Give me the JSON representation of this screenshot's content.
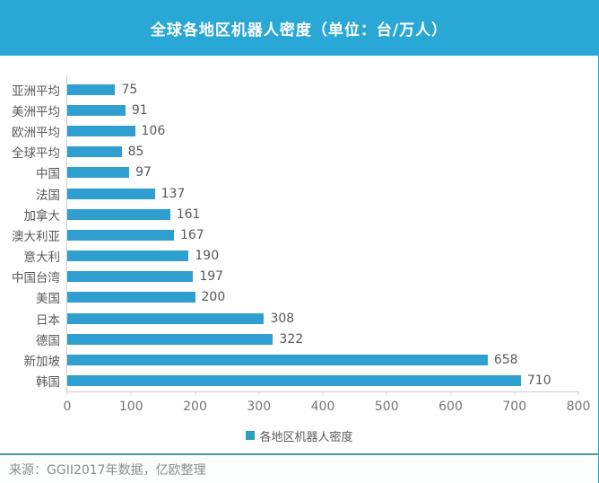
{
  "colors": {
    "header_bg": "#2aa8d5",
    "bar": "#2f9fd0",
    "legend_square": "#2aa1ba",
    "divider": "#4f9898",
    "label_text": "#595959",
    "tick_text": "#757575",
    "footer_text": "#8c8c8c"
  },
  "chart_data": {
    "type": "bar",
    "orientation": "horizontal",
    "title": "全球各地区机器人密度（单位：台/万人）",
    "categories": [
      "亚洲平均",
      "美洲平均",
      "欧洲平均",
      "全球平均",
      "中国",
      "法国",
      "加拿大",
      "澳大利亚",
      "意大利",
      "中国台湾",
      "美国",
      "日本",
      "德国",
      "新加坡",
      "韩国"
    ],
    "values": [
      75,
      91,
      106,
      85,
      97,
      137,
      161,
      167,
      190,
      197,
      200,
      308,
      322,
      658,
      710
    ],
    "xlabel": "",
    "ylabel": "",
    "xlim": [
      0,
      800
    ],
    "x_ticks": [
      0,
      100,
      200,
      300,
      400,
      500,
      600,
      700,
      800
    ],
    "grid": false,
    "legend": [
      "各地区机器人密度"
    ],
    "legend_position": "bottom",
    "value_labels": true
  },
  "footer": {
    "source": "来源：GGII2017年数据，亿欧整理"
  }
}
